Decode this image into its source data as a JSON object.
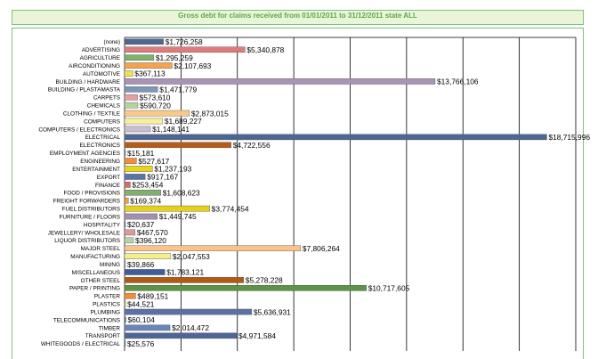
{
  "title": "Gross debt for claims received from 01/01/2011 to 31/12/2011 state ALL",
  "chart_data": {
    "type": "bar",
    "orientation": "horizontal",
    "title": "Gross debt for claims received from 01/01/2011 to 31/12/2011 state ALL",
    "xlabel": "",
    "ylabel": "",
    "xlim": [
      0,
      20000000
    ],
    "grid": true,
    "categories": [
      "(none)",
      "ADVERTISING",
      "AGRICULTURE",
      "AIRCONDITIONING",
      "AUTOMOTIVE",
      "BUILDING / HARDWARE",
      "BUILDING / PLASTAMASTA",
      "CARPETS",
      "CHEMICALS",
      "CLOTHING / TEXTILE",
      "COMPUTERS",
      "COMPUTERS / ELECTRONICS",
      "ELECTRICAL",
      "ELECTRONICS",
      "EMPLOYMENT AGENCIES",
      "ENGINEERING",
      "ENTERTAINMENT",
      "EXPORT",
      "FINANCE",
      "FOOD / PROVISIONS",
      "FREIGHT FORWARDERS",
      "FUEL DISTRIBUTORS",
      "FURNITURE / FLOORS",
      "HOSPITALITY",
      "JEWELLERY/ WHOLESALE",
      "LIQUOR DISTRIBUTORS",
      "MAJOR STEEL",
      "MANUFACTURING",
      "MINING",
      "MISCELLANEOUS",
      "OTHER STEEL",
      "PAPER / PRINTING",
      "PLASTER",
      "PLASTICS",
      "PLUMBING",
      "TELECOMMUNICATIONS",
      "TIMBER",
      "TRANSPORT",
      "WHITEGOODS / ELECTRICAL"
    ],
    "values": [
      1726258,
      5340878,
      1295259,
      2107693,
      367113,
      13766106,
      1471779,
      573610,
      590720,
      2873015,
      1689227,
      1148141,
      18715996,
      4722556,
      15181,
      527617,
      1237193,
      917167,
      253454,
      1608623,
      169374,
      3774454,
      1449745,
      20637,
      467570,
      396120,
      7806264,
      2047553,
      39866,
      1783121,
      5278228,
      10717605,
      489151,
      44521,
      5636931,
      60104,
      2014472,
      4971584,
      25576
    ],
    "labels": [
      "$1,726,258",
      "$5,340,878",
      "$1,295,259",
      "$2,107,693",
      "$367,113",
      "$13,766,106",
      "$1,471,779",
      "$573,610",
      "$590,720",
      "$2,873,015",
      "$1,689,227",
      "$1,148,141",
      "$18,715,996",
      "$4,722,556",
      "$15,181",
      "$527,617",
      "$1,237,193",
      "$917,167",
      "$253,454",
      "$1,608,623",
      "$169,374",
      "$3,774,454",
      "$1,449,745",
      "$20,637",
      "$467,570",
      "$396,120",
      "$7,806,264",
      "$2,047,553",
      "$39,866",
      "$1,783,121",
      "$5,278,228",
      "$10,717,605",
      "$489,151",
      "$44,521",
      "$5,636,931",
      "$60,104",
      "$2,014,472",
      "$4,971,584",
      "$25,576"
    ],
    "colors": [
      "#4f6592",
      "#e07b7b",
      "#7cb46a",
      "#f5a34e",
      "#f2e24a",
      "#a994b6",
      "#7f96ba",
      "#e7a0a0",
      "#b5d39e",
      "#fbc887",
      "#f6f09a",
      "#c9bdd3",
      "#4d6795",
      "#b85c15",
      "#6280b2",
      "#f58c3a",
      "#e8d41a",
      "#5a74a6",
      "#d86a6a",
      "#7fb06e",
      "#f79a3e",
      "#e9cf18",
      "#a58fb0",
      "#6d86b2",
      "#e39797",
      "#b7d3a4",
      "#f9c38a",
      "#f6ee8c",
      "#b8b0c8",
      "#3f5e96",
      "#b05a12",
      "#5c9443",
      "#f48c34",
      "#e7d630",
      "#5b71a5",
      "#5a79ae",
      "#6a85b8",
      "#4f6598",
      "#6b82b3"
    ]
  }
}
